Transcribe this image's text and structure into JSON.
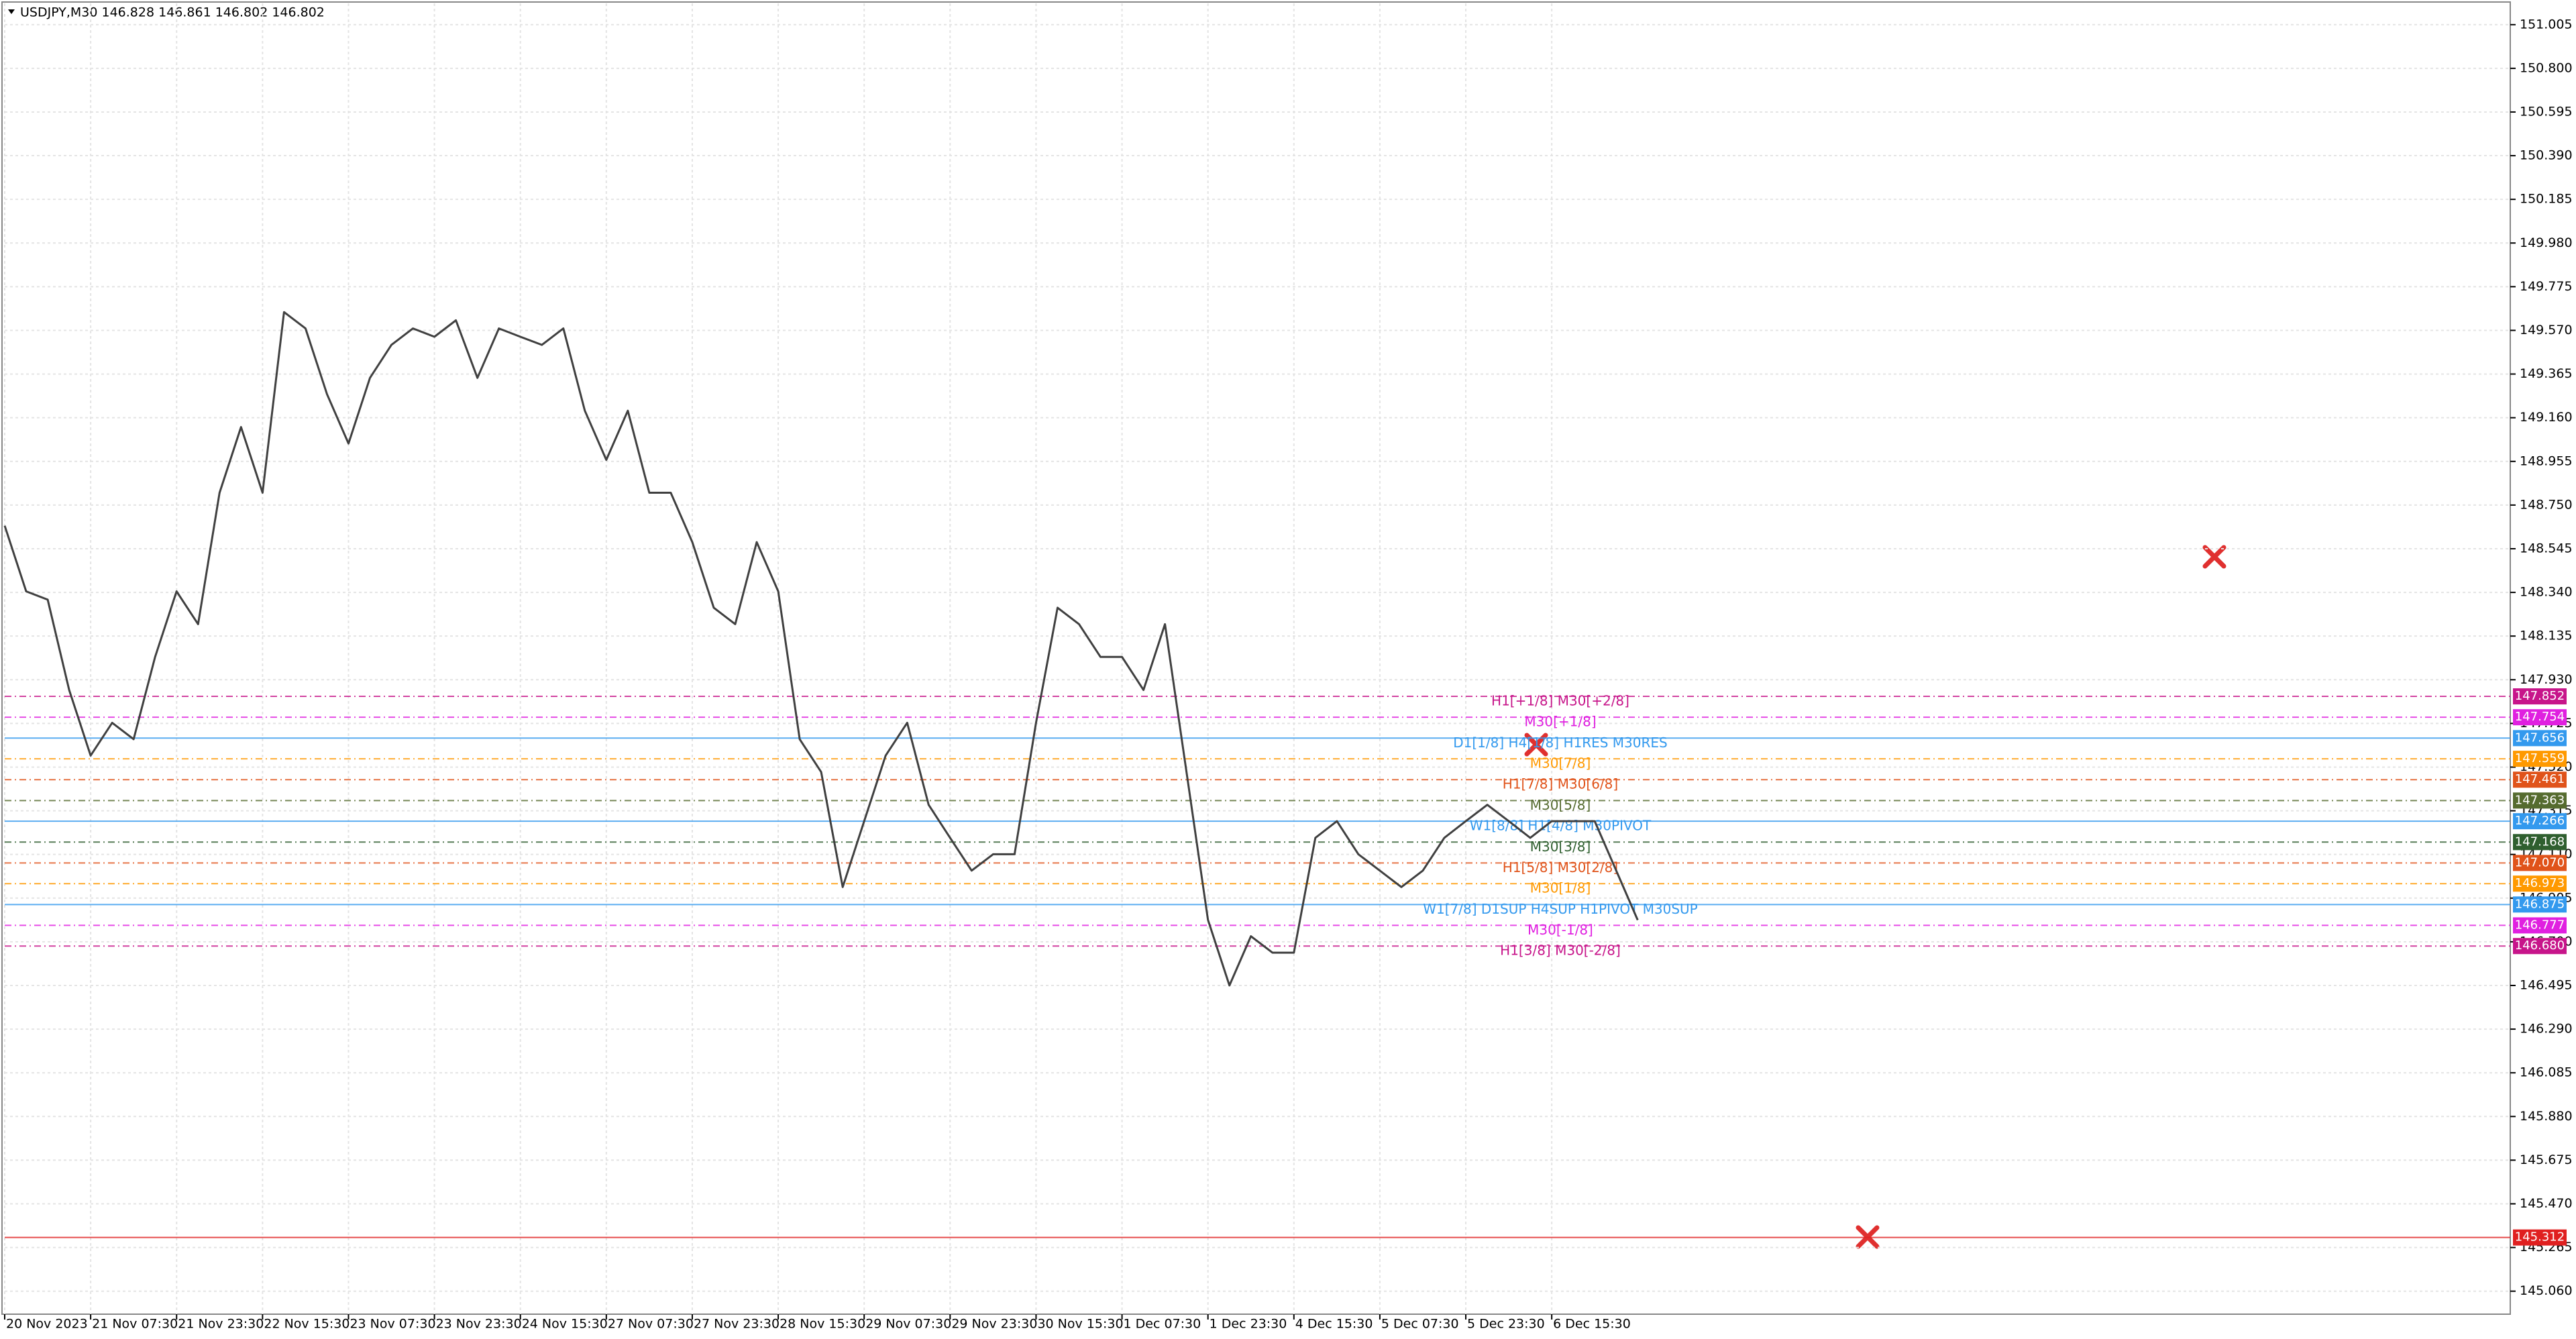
{
  "chart_data": {
    "type": "line",
    "title": "USDJPY,M30  146.828 146.861 146.802 146.802",
    "categories": [
      "20 Nov 2023",
      null,
      null,
      null,
      "21 Nov 07:30",
      null,
      null,
      null,
      "21 Nov 23:30",
      null,
      null,
      null,
      "22 Nov 15:30",
      null,
      null,
      null,
      "23 Nov 07:30",
      null,
      null,
      null,
      "23 Nov 23:30",
      null,
      null,
      null,
      "24 Nov 15:30",
      null,
      null,
      null,
      "27 Nov 07:30",
      null,
      null,
      null,
      "27 Nov 23:30",
      null,
      null,
      null,
      "28 Nov 15:30",
      null,
      null,
      null,
      "29 Nov 07:30",
      null,
      null,
      null,
      "29 Nov 23:30",
      null,
      null,
      null,
      "30 Nov 15:30",
      null,
      null,
      null,
      "1 Dec 07:30",
      null,
      null,
      null,
      "1 Dec 23:30",
      null,
      null,
      null,
      "4 Dec 15:30",
      null,
      null,
      null,
      "5 Dec 07:30",
      null,
      null,
      null,
      "5 Dec 23:30",
      null,
      null,
      null,
      "6 Dec 15:30",
      null,
      null,
      null,
      null
    ],
    "series": [
      {
        "name": "USDJPY",
        "color": "#404040",
        "values": [
          148.653,
          148.345,
          148.306,
          147.882,
          147.574,
          147.728,
          147.651,
          148.037,
          148.345,
          148.191,
          148.808,
          149.116,
          148.808,
          149.656,
          149.579,
          149.27,
          149.039,
          149.347,
          149.502,
          149.579,
          149.54,
          149.617,
          149.347,
          149.579,
          149.54,
          149.502,
          149.579,
          149.193,
          148.962,
          149.193,
          148.808,
          148.808,
          148.576,
          148.268,
          148.191,
          148.576,
          148.345,
          147.651,
          147.497,
          146.957,
          147.266,
          147.574,
          147.728,
          147.343,
          147.188,
          147.034,
          147.111,
          147.111,
          147.728,
          148.268,
          148.191,
          148.037,
          148.037,
          147.882,
          148.191,
          147.497,
          146.803,
          146.495,
          146.726,
          146.649,
          146.649,
          147.188,
          147.266,
          147.111,
          147.034,
          146.957,
          147.034,
          147.188,
          147.266,
          147.343,
          147.266,
          147.188,
          147.266,
          147.266,
          147.266,
          147.034,
          146.802
        ]
      }
    ],
    "ylim": [
      144.952,
      151.105
    ],
    "yticks": [
      151.005,
      {
        "value": 150.8,
        "label": "150.800"
      },
      150.595,
      {
        "value": 150.39,
        "label": "150.390"
      },
      150.185,
      {
        "value": 149.98,
        "label": "149.980"
      },
      149.775,
      {
        "value": 149.57,
        "label": "149.570"
      },
      149.365,
      {
        "value": 149.16,
        "label": "149.160"
      },
      148.955,
      {
        "value": 148.75,
        "label": "148.750"
      },
      148.545,
      {
        "value": 148.34,
        "label": "148.340"
      },
      148.135,
      {
        "value": 147.93,
        "label": "147.930"
      },
      147.725,
      {
        "value": 147.52,
        "label": "147.520"
      },
      147.315,
      {
        "value": 147.11,
        "label": "147.110"
      },
      146.905,
      {
        "value": 146.7,
        "label": "146.700"
      },
      146.495,
      {
        "value": 146.29,
        "label": "146.290"
      },
      146.085,
      {
        "value": 145.88,
        "label": "145.880"
      },
      145.675,
      {
        "value": 145.47,
        "label": "145.470"
      },
      145.265,
      {
        "value": 145.06,
        "label": "145.060"
      }
    ],
    "grid": true,
    "levels": {
      "values": [
        147.852,
        147.754,
        147.656,
        147.559,
        147.461,
        147.363,
        147.266,
        147.168,
        147.07,
        146.973,
        146.875,
        146.777,
        146.68,
        145.312
      ],
      "value_labels": [
        "147.852",
        "147.754",
        "147.656",
        "147.559",
        "147.461",
        "147.363",
        "147.266",
        "147.168",
        "147.070",
        "146.973",
        "146.875",
        "146.777",
        "146.680",
        "145.312"
      ],
      "colors": [
        "#c7158a",
        "#e020e0",
        "#3399ee",
        "#ff9900",
        "#e0531a",
        "#556b2f",
        "#3399ee",
        "#2f5f2f",
        "#e0531a",
        "#ff9900",
        "#3399ee",
        "#e020e0",
        "#c7158a",
        "#e02020"
      ],
      "texts": [
        "H1[+1/8] M30[+2/8]",
        "M30[+1/8]",
        "D1[1/8] H4[1/8] H1RES M30RES",
        "M30[7/8]",
        "H1[7/8] M30[6/8]",
        "M30[5/8]",
        "W1[8/8] H1[4/8] M30PIVOT",
        "M30[3/8]",
        "H1[5/8] M30[2/8]",
        "M30[1/8]",
        "W1[7/8] D1SUP H4SUP H1PIVOT M30SUP",
        "M30[-1/8]",
        "H1[3/8] M30[-2/8]",
        null
      ]
    }
  }
}
